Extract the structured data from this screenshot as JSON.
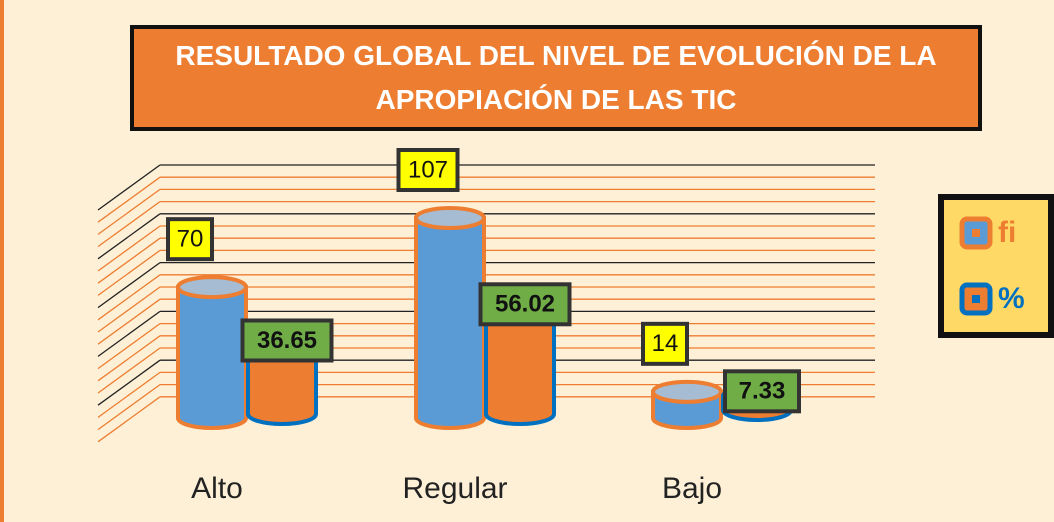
{
  "chart_data": {
    "type": "cylinder-bar",
    "title": "RESULTADO GLOBAL DEL NIVEL DE EVOLUCIÓN DE LA APROPIACIÓN DE LAS TIC",
    "categories": [
      "Alto",
      "Regular",
      "Bajo"
    ],
    "series": [
      {
        "name": "fi",
        "color": "#5b9bd5",
        "edge_color": "#ed7d31",
        "label_color": "#ffff00",
        "values": [
          70,
          107,
          14
        ]
      },
      {
        "name": "%",
        "color": "#ed7d31",
        "edge_color": "#0070c0",
        "label_color": "#70ad47",
        "values": [
          36.65,
          56.02,
          7.33
        ]
      }
    ],
    "legend": "right"
  }
}
